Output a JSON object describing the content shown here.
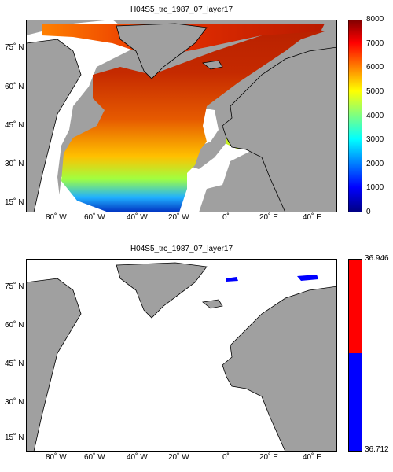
{
  "panels": [
    {
      "title": "H04S5_trc_1987_07_layer17",
      "lat_ticks": [
        "75˚ N",
        "60˚ N",
        "45˚ N",
        "30˚ N",
        "15˚ N"
      ],
      "lon_ticks": [
        "80˚ W",
        "60˚ W",
        "40˚ W",
        "20˚ W",
        "0˚",
        "20˚ E",
        "40˚ E"
      ],
      "colorbar": {
        "type": "jet",
        "min": 0,
        "max": 8000,
        "ticks": [
          "8000",
          "7000",
          "6000",
          "5000",
          "4000",
          "3000",
          "2000",
          "1000",
          "0"
        ]
      }
    },
    {
      "title": "H04S5_trc_1987_07_layer17",
      "lat_ticks": [
        "75˚ N",
        "60˚ N",
        "45˚ N",
        "30˚ N",
        "15˚ N"
      ],
      "lon_ticks": [
        "80˚ W",
        "60˚ W",
        "40˚ W",
        "20˚ W",
        "0˚",
        "20˚ E",
        "40˚ E"
      ],
      "colorbar": {
        "type": "two-color",
        "top_color": "#ff0000",
        "bottom_color": "#0000ff",
        "max_label": "36.946",
        "min_label": "36.712"
      }
    }
  ],
  "colors": {
    "land": "#a0a0a0",
    "ocean_nodata": "#ffffff",
    "coast": "#000000"
  }
}
